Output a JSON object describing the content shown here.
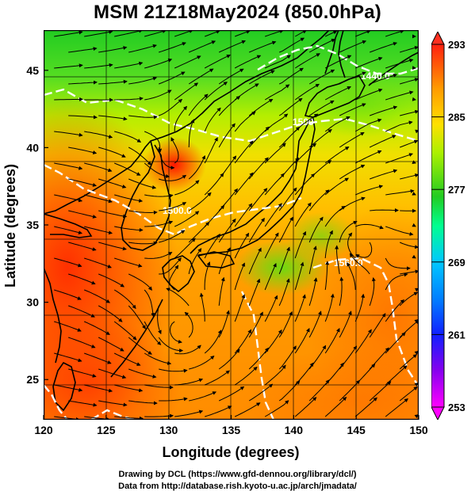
{
  "title": "MSM 21Z18May2024 (850.0hPa)",
  "x_axis": {
    "label": "Longitude (degrees)",
    "ticks": [
      "120",
      "125",
      "130",
      "135",
      "140",
      "145",
      "150"
    ],
    "range": [
      120,
      150
    ]
  },
  "y_axis": {
    "label": "Latitude  (degrees)",
    "ticks": [
      "25",
      "30",
      "35",
      "40",
      "45"
    ],
    "range": [
      22.4,
      47.6
    ]
  },
  "colorbar": {
    "labels": [
      "293",
      "285",
      "277",
      "269",
      "261",
      "253"
    ],
    "range": [
      253,
      293
    ],
    "colors": [
      "#ff00ff",
      "#5a00d8",
      "#0015ff",
      "#00b0ff",
      "#00ff80",
      "#22cc22",
      "#a6f000",
      "#ffdd00",
      "#ff9900",
      "#ff4400",
      "#ff1a1a"
    ]
  },
  "contour_labels": [
    "1440.0",
    "1500",
    "1500.0",
    "1560.0"
  ],
  "credits": [
    "Drawing by DCL (https://www.gfd-dennou.org/library/dcl/)",
    "Data from http://database.rish.kyoto-u.ac.jp/arch/jmadata/"
  ]
}
